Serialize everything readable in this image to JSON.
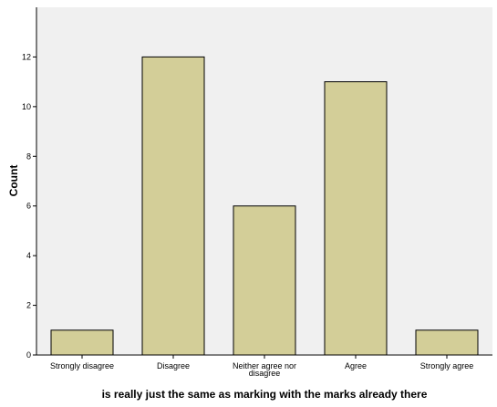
{
  "chart_data": {
    "type": "bar",
    "categories": [
      "Strongly disagree",
      "Disagree",
      "Neither agree nor disagree",
      "Agree",
      "Strongly agree"
    ],
    "category_label_lines": [
      [
        "Strongly disagree"
      ],
      [
        "Disagree"
      ],
      [
        "Neither agree nor",
        "disagree"
      ],
      [
        "Agree"
      ],
      [
        "Strongly agree"
      ]
    ],
    "values": [
      1,
      12,
      6,
      11,
      1
    ],
    "xlabel": "is really just the same as marking with the marks already there",
    "ylabel": "Count",
    "ylim": [
      0,
      14
    ],
    "yticks": [
      0,
      2,
      4,
      6,
      8,
      10,
      12
    ],
    "grid": false,
    "colors": {
      "bar_fill": "#D3CE98",
      "bar_stroke": "#000000",
      "plot_background": "#F0F0F0",
      "axis": "#000000"
    }
  }
}
